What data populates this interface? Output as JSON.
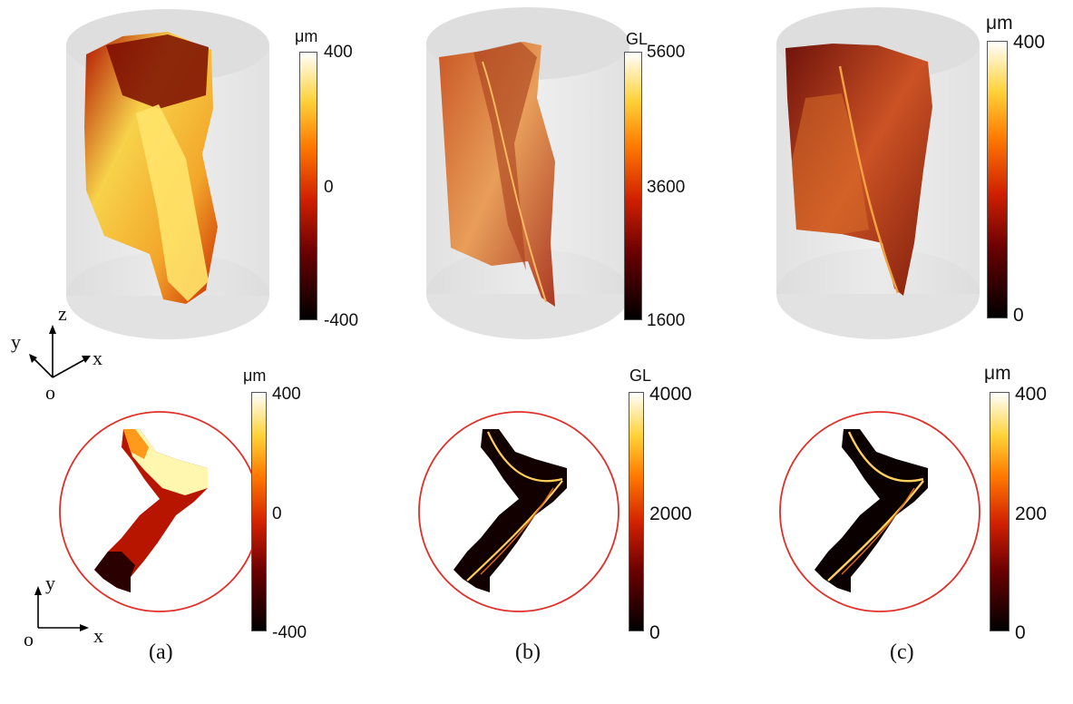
{
  "panels": [
    {
      "id": "a",
      "caption": "(a)",
      "top_colorbar": {
        "unit": "μm",
        "ticks": [
          "400",
          "0",
          "-400"
        ]
      },
      "bottom_colorbar": {
        "unit": "μm",
        "ticks": [
          "400",
          "0",
          "-400"
        ]
      }
    },
    {
      "id": "b",
      "caption": "(b)",
      "top_colorbar": {
        "unit": "GL",
        "ticks": [
          "5600",
          "3600",
          "1600"
        ]
      },
      "bottom_colorbar": {
        "unit": "GL",
        "ticks": [
          "4000",
          "2000",
          "0"
        ]
      }
    },
    {
      "id": "c",
      "caption": "(c)",
      "top_colorbar": {
        "unit": "μm",
        "ticks": [
          "400",
          "0"
        ]
      },
      "bottom_colorbar": {
        "unit": "μm",
        "ticks": [
          "400",
          "200",
          "0"
        ]
      }
    }
  ],
  "axes_3d": {
    "z": "z",
    "y": "y",
    "x": "x",
    "origin": "o"
  },
  "axes_2d": {
    "y": "y",
    "x": "x",
    "origin": "o"
  },
  "colors": {
    "cylinder_fill": "#e6e6e6",
    "cylinder_cap": "#d9d9d9",
    "circle_outline": "#e0302a",
    "colormap": [
      "#000000",
      "#5a0000",
      "#c01800",
      "#f06000",
      "#ffb000",
      "#ffe860",
      "#ffffff"
    ]
  }
}
